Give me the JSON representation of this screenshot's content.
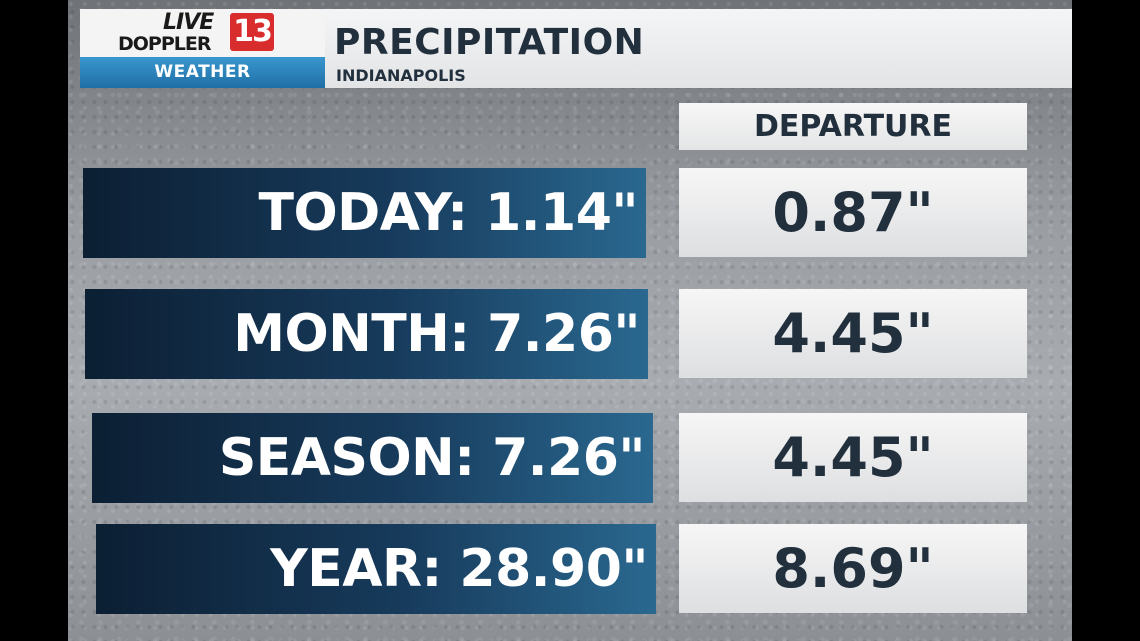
{
  "logo": {
    "live": "LIVE",
    "doppler": "DOPPLER",
    "channel": "13",
    "weather": "WEATHER",
    "badge_color": "#d92c2c",
    "weather_bar_color": "#2a86c0"
  },
  "header": {
    "title": "PRECIPITATION",
    "subtitle": "INDIANAPOLIS"
  },
  "departure_header": "DEPARTURE",
  "rows": [
    {
      "label": "TODAY: 1.14\"",
      "departure": "0.87\""
    },
    {
      "label": "MONTH: 7.26\"",
      "departure": "4.45\""
    },
    {
      "label": "SEASON: 7.26\"",
      "departure": "4.45\""
    },
    {
      "label": "YEAR: 28.90\"",
      "departure": "8.69\""
    }
  ]
}
